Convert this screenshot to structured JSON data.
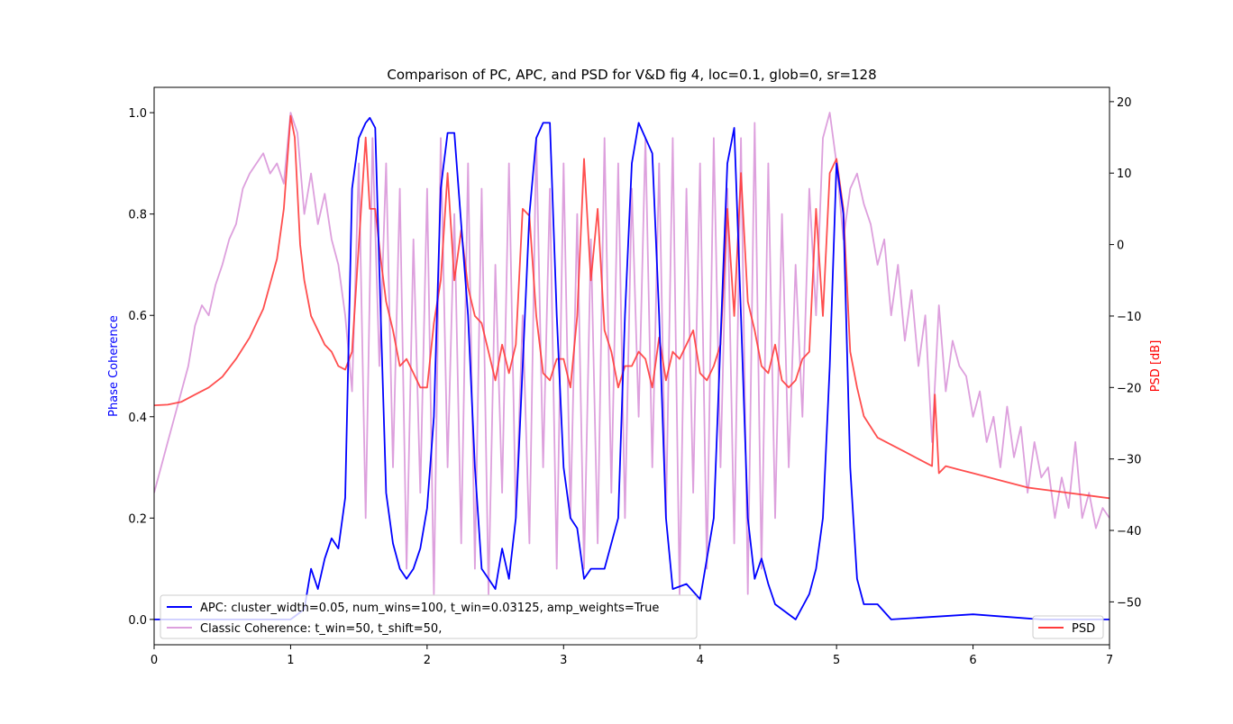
{
  "chart_data": {
    "type": "line",
    "title": "Comparison of PC, APC, and PSD for V&D fig 4, loc=0.1, glob=0, sr=128",
    "xlabel": "",
    "ylabel": "Phase Coherence",
    "ylabel_right": "PSD [dB]",
    "xlim": [
      0,
      7
    ],
    "ylim": [
      -0.05,
      1.05
    ],
    "ylim_right": [
      -56,
      22
    ],
    "x_ticks": [
      "0",
      "1",
      "2",
      "3",
      "4",
      "5",
      "6",
      "7"
    ],
    "y_ticks": [
      "0.0",
      "0.2",
      "0.4",
      "0.6",
      "0.8",
      "1.0"
    ],
    "y_ticks_right": [
      "−50",
      "−40",
      "−30",
      "−20",
      "−10",
      "0",
      "10",
      "20"
    ],
    "grid": false,
    "legend_left_placement": "lower-left",
    "legend_right_placement": "lower-right",
    "colors": {
      "apc": "#0000ff",
      "classic": "#dda0dd",
      "psd": "#ff3b3b",
      "ylabel": "#0000ff",
      "ylabel_right": "#ff0000"
    },
    "series": [
      {
        "name": "APC: cluster_width=0.05, num_wins=100, t_win=0.03125, amp_weights=True",
        "axis": "left",
        "x": [
          0,
          1.0,
          1.1,
          1.15,
          1.2,
          1.25,
          1.3,
          1.35,
          1.4,
          1.45,
          1.5,
          1.55,
          1.58,
          1.62,
          1.66,
          1.7,
          1.75,
          1.8,
          1.85,
          1.9,
          1.95,
          2.0,
          2.05,
          2.1,
          2.15,
          2.2,
          2.3,
          2.35,
          2.4,
          2.45,
          2.5,
          2.55,
          2.6,
          2.65,
          2.7,
          2.75,
          2.8,
          2.85,
          2.9,
          2.95,
          3.0,
          3.05,
          3.1,
          3.15,
          3.2,
          3.3,
          3.4,
          3.45,
          3.5,
          3.55,
          3.6,
          3.65,
          3.7,
          3.75,
          3.8,
          3.9,
          4.0,
          4.1,
          4.15,
          4.2,
          4.25,
          4.3,
          4.35,
          4.4,
          4.45,
          4.5,
          4.55,
          4.6,
          4.7,
          4.8,
          4.85,
          4.9,
          4.95,
          5.0,
          5.05,
          5.1,
          5.15,
          5.2,
          5.3,
          5.4,
          6.0,
          6.5,
          7.0
        ],
        "y": [
          0.0,
          0.0,
          0.02,
          0.1,
          0.06,
          0.12,
          0.16,
          0.14,
          0.24,
          0.85,
          0.95,
          0.98,
          0.99,
          0.97,
          0.6,
          0.25,
          0.15,
          0.1,
          0.08,
          0.1,
          0.14,
          0.22,
          0.4,
          0.85,
          0.96,
          0.96,
          0.6,
          0.3,
          0.1,
          0.08,
          0.06,
          0.14,
          0.08,
          0.2,
          0.5,
          0.8,
          0.95,
          0.98,
          0.98,
          0.6,
          0.3,
          0.2,
          0.18,
          0.08,
          0.1,
          0.1,
          0.2,
          0.6,
          0.9,
          0.98,
          0.95,
          0.92,
          0.6,
          0.2,
          0.06,
          0.07,
          0.04,
          0.2,
          0.55,
          0.9,
          0.97,
          0.6,
          0.2,
          0.08,
          0.12,
          0.07,
          0.03,
          0.02,
          0.0,
          0.05,
          0.1,
          0.2,
          0.5,
          0.9,
          0.8,
          0.3,
          0.08,
          0.03,
          0.03,
          0.0,
          0.01,
          0.0,
          0.0
        ]
      },
      {
        "name": "Classic Coherence: t_win=50, t_shift=50,",
        "axis": "left",
        "x": [
          0,
          0.05,
          0.1,
          0.15,
          0.2,
          0.25,
          0.3,
          0.35,
          0.4,
          0.45,
          0.5,
          0.55,
          0.6,
          0.65,
          0.7,
          0.75,
          0.8,
          0.85,
          0.9,
          0.95,
          1.0,
          1.05,
          1.1,
          1.15,
          1.2,
          1.25,
          1.3,
          1.35,
          1.4,
          1.45,
          1.5,
          1.55,
          1.6,
          1.65,
          1.7,
          1.75,
          1.8,
          1.85,
          1.9,
          1.95,
          2.0,
          2.05,
          2.1,
          2.15,
          2.2,
          2.25,
          2.3,
          2.35,
          2.4,
          2.45,
          2.5,
          2.55,
          2.6,
          2.65,
          2.7,
          2.75,
          2.8,
          2.85,
          2.9,
          2.95,
          3.0,
          3.05,
          3.1,
          3.15,
          3.2,
          3.25,
          3.3,
          3.35,
          3.4,
          3.45,
          3.5,
          3.55,
          3.6,
          3.65,
          3.7,
          3.75,
          3.8,
          3.85,
          3.9,
          3.95,
          4.0,
          4.05,
          4.1,
          4.15,
          4.2,
          4.25,
          4.3,
          4.35,
          4.4,
          4.45,
          4.5,
          4.55,
          4.6,
          4.65,
          4.7,
          4.75,
          4.8,
          4.85,
          4.9,
          4.95,
          5.0,
          5.05,
          5.1,
          5.15,
          5.2,
          5.25,
          5.3,
          5.35,
          5.4,
          5.45,
          5.5,
          5.55,
          5.6,
          5.65,
          5.7,
          5.75,
          5.8,
          5.85,
          5.9,
          5.95,
          6.0,
          6.05,
          6.1,
          6.15,
          6.2,
          6.25,
          6.3,
          6.35,
          6.4,
          6.45,
          6.5,
          6.55,
          6.6,
          6.65,
          6.7,
          6.75,
          6.8,
          6.85,
          6.9,
          6.95,
          7.0
        ],
        "y": [
          0.25,
          0.3,
          0.35,
          0.4,
          0.45,
          0.5,
          0.58,
          0.62,
          0.6,
          0.66,
          0.7,
          0.75,
          0.78,
          0.85,
          0.88,
          0.9,
          0.92,
          0.88,
          0.9,
          0.86,
          1.0,
          0.96,
          0.8,
          0.88,
          0.78,
          0.84,
          0.75,
          0.7,
          0.6,
          0.45,
          0.9,
          0.2,
          0.95,
          0.5,
          0.9,
          0.3,
          0.85,
          0.1,
          0.75,
          0.25,
          0.85,
          0.05,
          0.95,
          0.3,
          0.8,
          0.15,
          0.9,
          0.1,
          0.85,
          0.05,
          0.7,
          0.25,
          0.9,
          0.2,
          0.6,
          0.15,
          0.95,
          0.3,
          0.85,
          0.1,
          0.9,
          0.2,
          0.8,
          0.1,
          0.75,
          0.15,
          0.95,
          0.25,
          0.9,
          0.2,
          0.85,
          0.4,
          0.95,
          0.3,
          0.9,
          0.2,
          0.95,
          0.05,
          0.85,
          0.25,
          0.9,
          0.1,
          0.95,
          0.3,
          0.85,
          0.15,
          0.95,
          0.05,
          0.98,
          0.1,
          0.9,
          0.2,
          0.8,
          0.3,
          0.7,
          0.4,
          0.85,
          0.6,
          0.95,
          1.0,
          0.9,
          0.75,
          0.85,
          0.88,
          0.82,
          0.78,
          0.7,
          0.75,
          0.6,
          0.7,
          0.55,
          0.65,
          0.5,
          0.6,
          0.35,
          0.62,
          0.45,
          0.55,
          0.5,
          0.48,
          0.4,
          0.45,
          0.35,
          0.4,
          0.3,
          0.42,
          0.32,
          0.38,
          0.25,
          0.35,
          0.28,
          0.3,
          0.2,
          0.28,
          0.22,
          0.35,
          0.2,
          0.25,
          0.18,
          0.22,
          0.2
        ]
      },
      {
        "name": "PSD",
        "axis": "right",
        "x": [
          0,
          0.1,
          0.2,
          0.3,
          0.4,
          0.5,
          0.6,
          0.7,
          0.8,
          0.9,
          0.95,
          1.0,
          1.03,
          1.07,
          1.1,
          1.15,
          1.2,
          1.25,
          1.3,
          1.35,
          1.4,
          1.45,
          1.5,
          1.55,
          1.58,
          1.62,
          1.66,
          1.7,
          1.75,
          1.8,
          1.85,
          1.9,
          1.95,
          2.0,
          2.05,
          2.1,
          2.15,
          2.2,
          2.25,
          2.3,
          2.35,
          2.4,
          2.45,
          2.5,
          2.55,
          2.6,
          2.65,
          2.7,
          2.75,
          2.8,
          2.85,
          2.9,
          2.95,
          3.0,
          3.05,
          3.1,
          3.15,
          3.2,
          3.25,
          3.3,
          3.35,
          3.4,
          3.45,
          3.5,
          3.55,
          3.6,
          3.65,
          3.7,
          3.75,
          3.8,
          3.85,
          3.9,
          3.95,
          4.0,
          4.05,
          4.1,
          4.15,
          4.2,
          4.25,
          4.3,
          4.35,
          4.4,
          4.45,
          4.5,
          4.55,
          4.6,
          4.65,
          4.7,
          4.75,
          4.8,
          4.85,
          4.9,
          4.95,
          5.0,
          5.05,
          5.1,
          5.15,
          5.2,
          5.3,
          5.4,
          5.5,
          5.6,
          5.7,
          5.72,
          5.75,
          5.8,
          5.9,
          6.0,
          6.2,
          6.4,
          6.6,
          6.8,
          7.0
        ],
        "y": [
          -22.5,
          -22.4,
          -22,
          -21,
          -20,
          -18.5,
          -16,
          -13,
          -9,
          -2,
          5,
          18,
          15,
          0,
          -5,
          -10,
          -12,
          -14,
          -15,
          -17,
          -17.5,
          -15,
          0,
          15,
          5,
          5,
          -2,
          -8,
          -12,
          -17,
          -16,
          -18,
          -20,
          -20,
          -11,
          -5,
          10,
          -5,
          2,
          -6,
          -10,
          -11,
          -15,
          -19,
          -14,
          -18,
          -14,
          5,
          4,
          -10,
          -18,
          -19,
          -16,
          -16,
          -20,
          -10,
          12,
          -5,
          5,
          -12,
          -15,
          -20,
          -17,
          -17,
          -15,
          -16,
          -20,
          -13,
          -19,
          -15,
          -16,
          -14,
          -12,
          -18,
          -19,
          -17,
          -14,
          5,
          -10,
          10,
          -8,
          -12,
          -17,
          -18,
          -14,
          -19,
          -20,
          -19,
          -16,
          -15,
          5,
          -10,
          10,
          12,
          5,
          -15,
          -20,
          -24,
          -27,
          -28,
          -29,
          -30,
          -31,
          -21,
          -32,
          -31,
          -31.5,
          -32,
          -33,
          -34,
          -34.5,
          -35,
          -35.5
        ]
      }
    ]
  }
}
